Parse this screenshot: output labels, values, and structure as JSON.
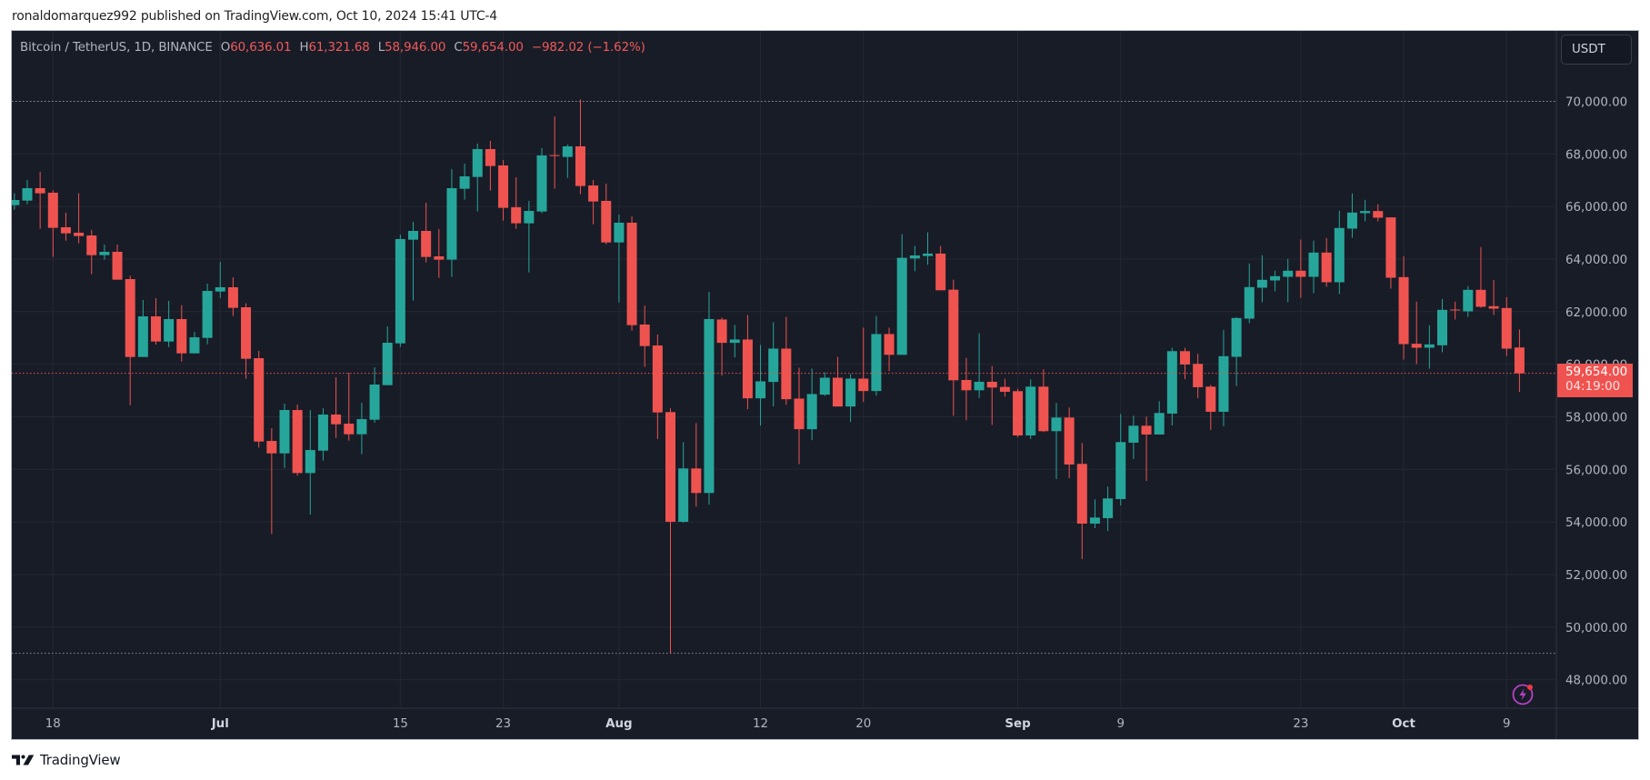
{
  "header": {
    "published_text": "ronaldomarquez992 published on TradingView.com, Oct 10, 2024 15:41 UTC-4"
  },
  "legend": {
    "symbol": "Bitcoin / TetherUS, 1D, BINANCE",
    "open_label": "O",
    "open": "60,636.01",
    "high_label": "H",
    "high": "61,321.68",
    "low_label": "L",
    "low": "58,946.00",
    "close_label": "C",
    "close": "59,654.00",
    "change": "−982.02 (−1.62%)"
  },
  "currency_button": "USDT",
  "current_price": {
    "value": "59,654.00",
    "countdown": "04:19:00"
  },
  "footer": {
    "brand": "TradingView"
  },
  "icons": {
    "bolt": "lightning-bolt-icon",
    "logo": "tradingview-logo-icon"
  },
  "colors": {
    "background": "#181c27",
    "grid": "#242833",
    "up": "#26a69a",
    "down": "#ef5350",
    "axis_text": "#b2b5be",
    "accent_purple": "#b542c5"
  },
  "chart_data": {
    "type": "candlestick",
    "title": "Bitcoin / TetherUS, 1D, BINANCE",
    "xlabel": "",
    "ylabel": "USDT",
    "ylim": [
      47000,
      71500
    ],
    "y_ticks": [
      "70,000.00",
      "68,000.00",
      "66,000.00",
      "64,000.00",
      "62,000.00",
      "60,000.00",
      "58,000.00",
      "56,000.00",
      "54,000.00",
      "52,000.00",
      "50,000.00",
      "48,000.00"
    ],
    "y_tick_values": [
      70000,
      68000,
      66000,
      64000,
      62000,
      60000,
      58000,
      56000,
      54000,
      52000,
      50000,
      48000
    ],
    "x_ticks": [
      {
        "label": "18",
        "day": 0,
        "bold": false
      },
      {
        "label": "Jul",
        "day": 13,
        "bold": true
      },
      {
        "label": "15",
        "day": 27,
        "bold": false
      },
      {
        "label": "23",
        "day": 35,
        "bold": false
      },
      {
        "label": "Aug",
        "day": 44,
        "bold": true
      },
      {
        "label": "12",
        "day": 55,
        "bold": false
      },
      {
        "label": "20",
        "day": 63,
        "bold": false
      },
      {
        "label": "Sep",
        "day": 75,
        "bold": true
      },
      {
        "label": "9",
        "day": 83,
        "bold": false
      },
      {
        "label": "23",
        "day": 97,
        "bold": false
      },
      {
        "label": "Oct",
        "day": 105,
        "bold": true
      },
      {
        "label": "9",
        "day": 113,
        "bold": false
      }
    ],
    "grid": true,
    "high_marker": 70000,
    "low_marker": 49000,
    "last_price": 59654,
    "first_date": "Jun 15",
    "columns": [
      "date",
      "open",
      "high",
      "low",
      "close"
    ],
    "candles": [
      [
        "Jun 15",
        66051,
        66501,
        65878,
        66247
      ],
      [
        "Jun 16",
        66224,
        67008,
        66086,
        66697
      ],
      [
        "Jun 17",
        66697,
        67320,
        65152,
        66501
      ],
      [
        "Jun 18",
        66524,
        66616,
        64080,
        65187
      ],
      [
        "Jun 19",
        65210,
        65763,
        64702,
        64979
      ],
      [
        "Jun 20",
        65002,
        66501,
        64599,
        64875
      ],
      [
        "Jun 21",
        64898,
        65106,
        63423,
        64149
      ],
      [
        "Jun 22",
        64149,
        64553,
        63976,
        64276
      ],
      [
        "Jun 23",
        64276,
        64553,
        63215,
        63215
      ],
      [
        "Jun 24",
        63238,
        63365,
        58441,
        60275
      ],
      [
        "Jun 25",
        60275,
        62443,
        60275,
        61820
      ],
      [
        "Jun 26",
        61820,
        62512,
        60748,
        60863
      ],
      [
        "Jun 27",
        60863,
        62408,
        60655,
        61716
      ],
      [
        "Jun 28",
        61716,
        62247,
        60102,
        60413
      ],
      [
        "Jun 29",
        60413,
        61232,
        60413,
        61024
      ],
      [
        "Jun 30",
        61001,
        63065,
        60759,
        62788
      ],
      [
        "Jul 1",
        62765,
        63895,
        62523,
        62927
      ],
      [
        "Jul 2",
        62927,
        63307,
        61832,
        62143
      ],
      [
        "Jul 3",
        62166,
        62316,
        59445,
        60206
      ],
      [
        "Jul 4",
        60229,
        60506,
        56827,
        57058
      ],
      [
        "Jul 5",
        57081,
        57565,
        53541,
        56608
      ],
      [
        "Jul 6",
        56608,
        58499,
        56055,
        58257
      ],
      [
        "Jul 7",
        58257,
        58465,
        55755,
        55859
      ],
      [
        "Jul 8",
        55859,
        58257,
        54282,
        56735
      ],
      [
        "Jul 9",
        56712,
        58326,
        56332,
        58084
      ],
      [
        "Jul 10",
        58084,
        59503,
        57196,
        57715
      ],
      [
        "Jul 11",
        57738,
        59675,
        57092,
        57335
      ],
      [
        "Jul 12",
        57335,
        58534,
        56574,
        57911
      ],
      [
        "Jul 13",
        57888,
        59883,
        57774,
        59226
      ],
      [
        "Jul 14",
        59203,
        61439,
        59203,
        60817
      ],
      [
        "Jul 15",
        60794,
        64933,
        60656,
        64760
      ],
      [
        "Jul 16",
        64737,
        65417,
        62420,
        65071
      ],
      [
        "Jul 17",
        65071,
        66144,
        63872,
        64080
      ],
      [
        "Jul 18",
        64103,
        65141,
        63284,
        63976
      ],
      [
        "Jul 19",
        63976,
        67424,
        63319,
        66697
      ],
      [
        "Jul 20",
        66674,
        67631,
        66259,
        67147
      ],
      [
        "Jul 21",
        67124,
        68392,
        65809,
        68184
      ],
      [
        "Jul 22",
        68184,
        68496,
        66605,
        67539
      ],
      [
        "Jul 23",
        67562,
        67769,
        65463,
        65948
      ],
      [
        "Jul 24",
        65971,
        67112,
        65152,
        65360
      ],
      [
        "Jul 25",
        65360,
        66213,
        63492,
        65832
      ],
      [
        "Jul 26",
        65809,
        68219,
        65740,
        67942
      ],
      [
        "Jul 27",
        67954,
        69430,
        66674,
        67919
      ],
      [
        "Jul 28",
        67885,
        68357,
        67089,
        68288
      ],
      [
        "Jul 29",
        68288,
        70075,
        66467,
        66778
      ],
      [
        "Jul 30",
        66801,
        67008,
        65325,
        66190
      ],
      [
        "Jul 31",
        66213,
        66870,
        64564,
        64633
      ],
      [
        "Aug 1",
        64633,
        65694,
        62350,
        65383
      ],
      [
        "Aug 2",
        65383,
        65625,
        61278,
        61486
      ],
      [
        "Aug 3",
        61509,
        62235,
        59894,
        60690
      ],
      [
        "Aug 4",
        60713,
        61128,
        57152,
        58165
      ],
      [
        "Aug 5",
        58178,
        58317,
        49000,
        54004
      ],
      [
        "Aug 6",
        54004,
        57037,
        53970,
        56034
      ],
      [
        "Aug 7",
        56034,
        57763,
        54581,
        55100
      ],
      [
        "Aug 8",
        55100,
        62754,
        54651,
        61716
      ],
      [
        "Aug 9",
        61700,
        61774,
        59567,
        60812
      ],
      [
        "Aug 10",
        60812,
        61493,
        60259,
        60939
      ],
      [
        "Aug 11",
        60939,
        61873,
        58287,
        58702
      ],
      [
        "Aug 12",
        58702,
        60732,
        57665,
        59348
      ],
      [
        "Aug 13",
        59325,
        61596,
        58391,
        60593
      ],
      [
        "Aug 14",
        60593,
        61804,
        58460,
        58668
      ],
      [
        "Aug 15",
        58691,
        59867,
        56200,
        57527
      ],
      [
        "Aug 16",
        57527,
        59832,
        57111,
        58864
      ],
      [
        "Aug 17",
        58841,
        59694,
        58795,
        59486
      ],
      [
        "Aug 18",
        59486,
        60282,
        58391,
        58391
      ],
      [
        "Aug 19",
        58391,
        59625,
        57804,
        59452
      ],
      [
        "Aug 20",
        59452,
        61389,
        58564,
        58979
      ],
      [
        "Aug 21",
        58979,
        61839,
        58806,
        61147
      ],
      [
        "Aug 22",
        61147,
        61389,
        59740,
        60357
      ],
      [
        "Aug 23",
        60357,
        64945,
        60357,
        64046
      ],
      [
        "Aug 24",
        64023,
        64496,
        63539,
        64138
      ],
      [
        "Aug 25",
        64115,
        65015,
        63781,
        64208
      ],
      [
        "Aug 26",
        64208,
        64496,
        62812,
        62812
      ],
      [
        "Aug 27",
        62835,
        63216,
        58039,
        59388
      ],
      [
        "Aug 28",
        59400,
        60241,
        57866,
        59008
      ],
      [
        "Aug 29",
        59008,
        61175,
        58716,
        59331
      ],
      [
        "Aug 30",
        59331,
        59930,
        57693,
        59112
      ],
      [
        "Aug 31",
        59135,
        59446,
        58765,
        58951
      ],
      [
        "Sep 1",
        58974,
        59066,
        57221,
        57290
      ],
      [
        "Sep 2",
        57290,
        59423,
        57152,
        59147
      ],
      [
        "Sep 3",
        59147,
        59804,
        57417,
        57452
      ],
      [
        "Sep 4",
        57452,
        58524,
        55630,
        57971
      ],
      [
        "Sep 5",
        57971,
        58351,
        55665,
        56184
      ],
      [
        "Sep 6",
        56207,
        57002,
        52586,
        53935
      ],
      [
        "Sep 7",
        53935,
        54858,
        53762,
        54166
      ],
      [
        "Sep 8",
        54143,
        55342,
        53658,
        54893
      ],
      [
        "Sep 9",
        54870,
        58109,
        54627,
        57037
      ],
      [
        "Sep 10",
        57014,
        58040,
        56391,
        57659
      ],
      [
        "Sep 11",
        57659,
        58005,
        55561,
        57325
      ],
      [
        "Sep 12",
        57325,
        58593,
        57325,
        58144
      ],
      [
        "Sep 13",
        58121,
        60623,
        57671,
        60496
      ],
      [
        "Sep 14",
        60496,
        60623,
        59435,
        59989
      ],
      [
        "Sep 15",
        60012,
        60392,
        58709,
        59124
      ],
      [
        "Sep 16",
        59147,
        59216,
        57498,
        58190
      ],
      [
        "Sep 17",
        58190,
        61307,
        57637,
        60304
      ],
      [
        "Sep 18",
        60281,
        61792,
        59174,
        61757
      ],
      [
        "Sep 19",
        61734,
        63832,
        61561,
        62933
      ],
      [
        "Sep 20",
        62910,
        64144,
        62357,
        63210
      ],
      [
        "Sep 21",
        63187,
        63556,
        62772,
        63348
      ],
      [
        "Sep 22",
        63325,
        64005,
        62357,
        63556
      ],
      [
        "Sep 23",
        63556,
        64743,
        62530,
        63325
      ],
      [
        "Sep 24",
        63325,
        64697,
        62702,
        64247
      ],
      [
        "Sep 25",
        64247,
        64801,
        62945,
        63118
      ],
      [
        "Sep 26",
        63118,
        65839,
        62668,
        65181
      ],
      [
        "Sep 27",
        65158,
        66496,
        64812,
        65769
      ],
      [
        "Sep 28",
        65746,
        66254,
        65435,
        65827
      ],
      [
        "Sep 29",
        65827,
        66081,
        65435,
        65573
      ],
      [
        "Sep 30",
        65585,
        65585,
        62875,
        63290
      ],
      [
        "Oct 1",
        63313,
        64109,
        60177,
        60765
      ],
      [
        "Oct 2",
        60777,
        62380,
        60004,
        60627
      ],
      [
        "Oct 3",
        60627,
        61480,
        59831,
        60754
      ],
      [
        "Oct 4",
        60719,
        62483,
        60454,
        62068
      ],
      [
        "Oct 5",
        62080,
        62380,
        61699,
        62057
      ],
      [
        "Oct 6",
        62011,
        62968,
        61803,
        62829
      ],
      [
        "Oct 7",
        62829,
        64455,
        62149,
        62184
      ],
      [
        "Oct 8",
        62207,
        63210,
        61872,
        62114
      ],
      [
        "Oct 9",
        62138,
        62552,
        60315,
        60592
      ],
      [
        "Oct 10",
        60636,
        61322,
        58946,
        59654
      ]
    ]
  }
}
